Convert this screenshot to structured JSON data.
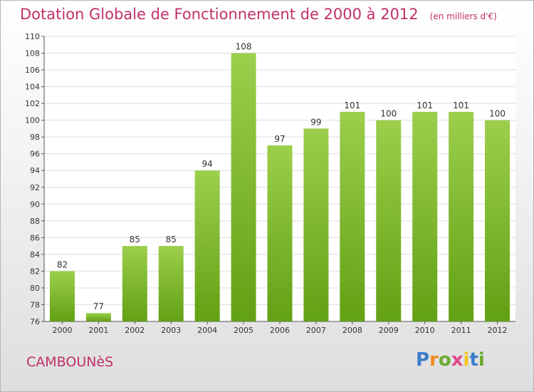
{
  "title": "Dotation Globale de Fonctionnement de 2000 à 2012",
  "subtitle": "(en milliers d'€)",
  "commune": "CAMBOUNèS",
  "logo": {
    "text": "Proxiti",
    "letter_colors": [
      "#3a7dc9",
      "#f08a1c",
      "#6aab2e",
      "#e04a8c",
      "#f4c419",
      "#3a7dc9",
      "#6aab2e"
    ]
  },
  "colors": {
    "bar_top": "#9ccf4c",
    "bar_bottom": "#62a014",
    "title": "#c0306a"
  },
  "chart_data": {
    "type": "bar",
    "title": "Dotation Globale de Fonctionnement de 2000 à 2012",
    "subtitle": "(en milliers d'€)",
    "xlabel": "",
    "ylabel": "",
    "categories": [
      "2000",
      "2001",
      "2002",
      "2003",
      "2004",
      "2005",
      "2006",
      "2007",
      "2008",
      "2009",
      "2010",
      "2011",
      "2012"
    ],
    "values": [
      82,
      77,
      85,
      85,
      94,
      108,
      97,
      99,
      101,
      100,
      101,
      101,
      100
    ],
    "ylim": [
      76,
      110
    ],
    "yticks": [
      76,
      78,
      80,
      82,
      84,
      86,
      88,
      90,
      92,
      94,
      96,
      98,
      100,
      102,
      104,
      106,
      108,
      110
    ],
    "grid": true,
    "legend": "none"
  }
}
